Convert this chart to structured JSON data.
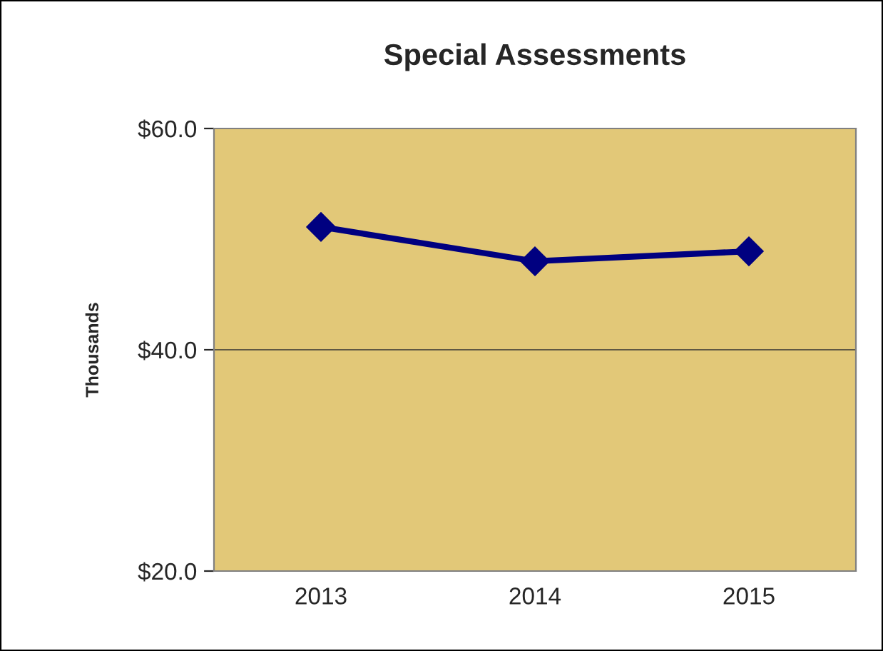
{
  "chart_data": {
    "type": "line",
    "title": "Special Assessments",
    "ylabel": "Thousands",
    "categories": [
      "2013",
      "2014",
      "2015"
    ],
    "series": [
      {
        "color": "#000080",
        "values": [
          51.1,
          48.0,
          48.9
        ]
      }
    ],
    "ylim": [
      20,
      60
    ],
    "yticks": [
      {
        "value": 20,
        "label": "$20.0"
      },
      {
        "value": 40,
        "label": "$40.0"
      },
      {
        "value": 60,
        "label": "$60.0"
      }
    ],
    "grid": "y",
    "legend": false,
    "marker": "diamond",
    "line_style": "solid"
  }
}
